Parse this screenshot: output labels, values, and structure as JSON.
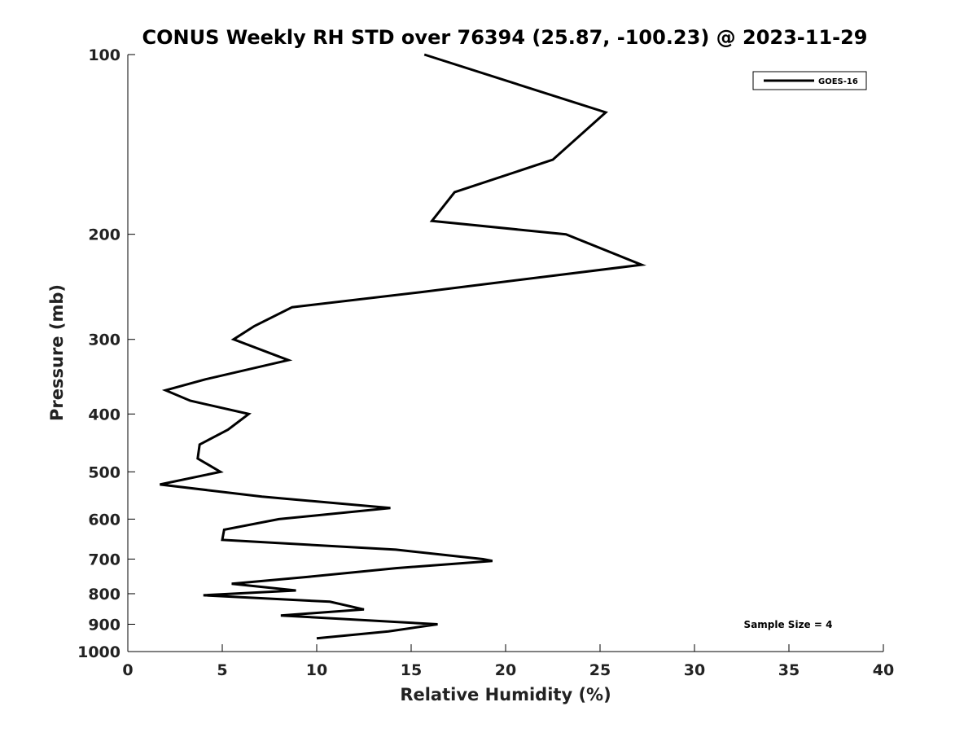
{
  "chart_data": {
    "type": "line",
    "title": "CONUS Weekly RH STD over 76394 (25.87, -100.23) @ 2023-11-29",
    "xlabel": "Relative Humidity (%)",
    "ylabel": "Pressure (mb)",
    "xlim": [
      0,
      40
    ],
    "ylim": [
      100,
      1000
    ],
    "y_scale": "log",
    "y_reversed": true,
    "x_ticks": [
      0,
      5,
      10,
      15,
      20,
      25,
      30,
      35,
      40
    ],
    "y_ticks": [
      100,
      200,
      300,
      400,
      500,
      600,
      700,
      800,
      900,
      1000
    ],
    "grid": false,
    "legend_position": "top-right",
    "annotation": "Sample Size = 4",
    "series": [
      {
        "name": "GOES-16",
        "color": "#000000",
        "points": [
          {
            "x": 15.7,
            "p": 100
          },
          {
            "x": 25.3,
            "p": 125
          },
          {
            "x": 22.5,
            "p": 150
          },
          {
            "x": 17.3,
            "p": 170
          },
          {
            "x": 16.1,
            "p": 190
          },
          {
            "x": 23.2,
            "p": 200
          },
          {
            "x": 27.2,
            "p": 225
          },
          {
            "x": 15.5,
            "p": 250
          },
          {
            "x": 8.7,
            "p": 265
          },
          {
            "x": 6.7,
            "p": 285
          },
          {
            "x": 5.6,
            "p": 300
          },
          {
            "x": 8.5,
            "p": 325
          },
          {
            "x": 4.1,
            "p": 350
          },
          {
            "x": 2.0,
            "p": 365
          },
          {
            "x": 3.3,
            "p": 380
          },
          {
            "x": 6.4,
            "p": 400
          },
          {
            "x": 5.3,
            "p": 425
          },
          {
            "x": 3.8,
            "p": 450
          },
          {
            "x": 3.7,
            "p": 475
          },
          {
            "x": 4.9,
            "p": 500
          },
          {
            "x": 1.7,
            "p": 525
          },
          {
            "x": 7.1,
            "p": 550
          },
          {
            "x": 13.9,
            "p": 575
          },
          {
            "x": 8.0,
            "p": 600
          },
          {
            "x": 5.1,
            "p": 625
          },
          {
            "x": 5.0,
            "p": 650
          },
          {
            "x": 14.2,
            "p": 675
          },
          {
            "x": 18.8,
            "p": 700
          },
          {
            "x": 19.3,
            "p": 705
          },
          {
            "x": 14.2,
            "p": 725
          },
          {
            "x": 9.5,
            "p": 750
          },
          {
            "x": 5.5,
            "p": 770
          },
          {
            "x": 8.9,
            "p": 790
          },
          {
            "x": 4.0,
            "p": 805
          },
          {
            "x": 10.7,
            "p": 825
          },
          {
            "x": 12.5,
            "p": 850
          },
          {
            "x": 8.1,
            "p": 870
          },
          {
            "x": 16.4,
            "p": 900
          },
          {
            "x": 13.8,
            "p": 925
          },
          {
            "x": 10.0,
            "p": 950
          }
        ]
      }
    ]
  }
}
